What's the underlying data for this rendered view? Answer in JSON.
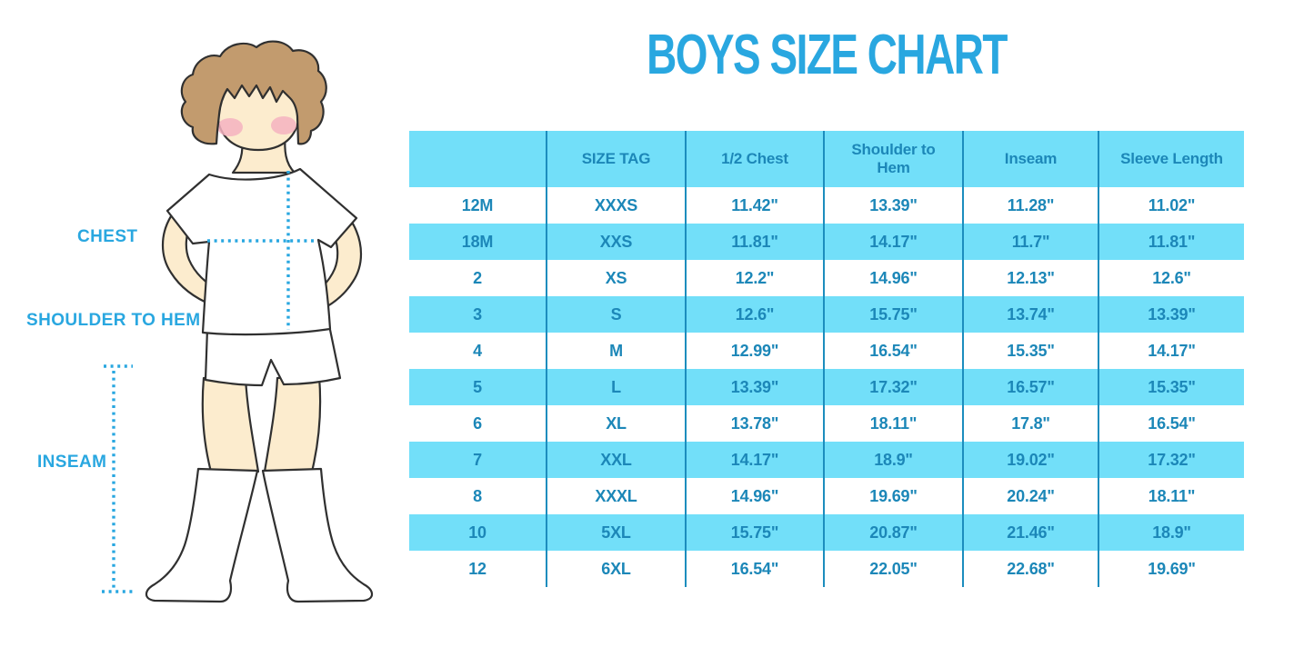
{
  "title": "BOYS SIZE CHART",
  "colors": {
    "accent_blue": "#29A7E0",
    "table_fill": "#72DFF9",
    "table_text": "#1C87B8",
    "table_divider": "#1C8DBE",
    "hair": "#C29B6E",
    "skin": "#FCECCE",
    "cheek": "#F5B3C1"
  },
  "figure": {
    "illustration": "cartoon boy in white t-shirt, white shorts and knee socks with dotted measurement guides",
    "labels": {
      "chest": "CHEST",
      "shoulder_to_hem": "SHOULDER TO HEM",
      "inseam": "INSEAM"
    }
  },
  "chart_data": {
    "type": "table",
    "title": "BOYS SIZE CHART",
    "columns": [
      "",
      "SIZE TAG",
      "1/2 Chest",
      "Shoulder to Hem",
      "Inseam",
      "Sleeve Length"
    ],
    "rows": [
      [
        "12M",
        "XXXS",
        "11.42\"",
        "13.39\"",
        "11.28\"",
        "11.02\""
      ],
      [
        "18M",
        "XXS",
        "11.81\"",
        "14.17\"",
        "11.7\"",
        "11.81\""
      ],
      [
        "2",
        "XS",
        "12.2\"",
        "14.96\"",
        "12.13\"",
        "12.6\""
      ],
      [
        "3",
        "S",
        "12.6\"",
        "15.75\"",
        "13.74\"",
        "13.39\""
      ],
      [
        "4",
        "M",
        "12.99\"",
        "16.54\"",
        "15.35\"",
        "14.17\""
      ],
      [
        "5",
        "L",
        "13.39\"",
        "17.32\"",
        "16.57\"",
        "15.35\""
      ],
      [
        "6",
        "XL",
        "13.78\"",
        "18.11\"",
        "17.8\"",
        "16.54\""
      ],
      [
        "7",
        "XXL",
        "14.17\"",
        "18.9\"",
        "19.02\"",
        "17.32\""
      ],
      [
        "8",
        "XXXL",
        "14.96\"",
        "19.69\"",
        "20.24\"",
        "18.11\""
      ],
      [
        "10",
        "5XL",
        "15.75\"",
        "20.87\"",
        "21.46\"",
        "18.9\""
      ],
      [
        "12",
        "6XL",
        "16.54\"",
        "22.05\"",
        "22.68\"",
        "19.69\""
      ]
    ],
    "layout": {
      "zebra": "header and every second data row filled light blue, others white",
      "units": "inches",
      "grid": "vertical divider lines only, no horizontal lines"
    }
  }
}
